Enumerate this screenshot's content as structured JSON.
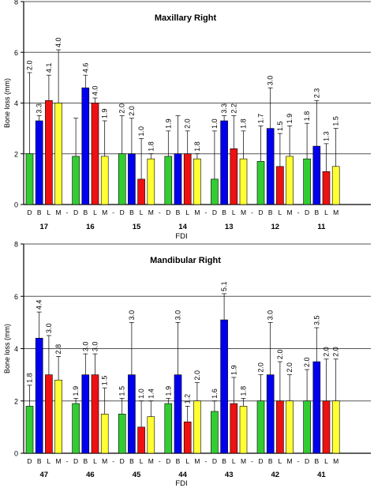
{
  "chart_data": [
    {
      "type": "bar",
      "title": "Maxillary Right",
      "ylabel": "Bone loss (mm)",
      "xlabel": "FDI",
      "ylim": [
        0,
        8
      ],
      "yticks": [
        "0",
        "2",
        "4",
        "6",
        "8"
      ],
      "grid": "horizontal at 2, 4, 6, 8",
      "separator_label": "-",
      "bar_letters": [
        "D",
        "B",
        "L",
        "M"
      ],
      "series_colors": [
        "#33cc33",
        "#0000ee",
        "#ee1111",
        "#ffff33"
      ],
      "categories": [
        "17",
        "16",
        "15",
        "14",
        "13",
        "12",
        "11"
      ],
      "series": [
        {
          "values": [
            2.0,
            1.9,
            2.0,
            1.9,
            1.0,
            1.7,
            1.8
          ],
          "errors": [
            3.2,
            1.5,
            1.5,
            1.0,
            1.9,
            1.4,
            1.4
          ],
          "labels": [
            "2.0",
            "",
            "2.0",
            "1.9",
            "1.0",
            "1.7",
            "1.8"
          ]
        },
        {
          "values": [
            3.3,
            4.6,
            2.0,
            2.0,
            3.3,
            3.0,
            2.3
          ],
          "errors": [
            0.2,
            0.5,
            1.4,
            1.5,
            0.2,
            1.6,
            1.8
          ],
          "labels": [
            "3.3",
            "4.6",
            "2.0",
            "",
            "3.3",
            "3.0",
            "2.3"
          ]
        },
        {
          "values": [
            4.1,
            4.0,
            1.0,
            2.0,
            2.2,
            1.5,
            1.3
          ],
          "errors": [
            1.0,
            0.2,
            1.6,
            0.9,
            1.3,
            1.3,
            1.1
          ],
          "labels": [
            "4.1",
            "4.0",
            "1.0",
            "2.0",
            "2.2",
            "1.5",
            "1.3"
          ]
        },
        {
          "values": [
            4.0,
            1.9,
            1.8,
            1.8,
            1.8,
            1.9,
            1.5
          ],
          "errors": [
            2.1,
            1.4,
            0.2,
            0.2,
            1.1,
            1.2,
            1.5
          ],
          "labels": [
            "4.0",
            "1.9",
            "1.8",
            "1.8",
            "1.8",
            "1.9",
            "1.5"
          ]
        }
      ]
    },
    {
      "type": "bar",
      "title": "Mandibular Right",
      "ylabel": "Bone loss (mm)",
      "xlabel": "FDI",
      "ylim": [
        0,
        8
      ],
      "yticks": [
        "0",
        "2",
        "4",
        "6",
        "8"
      ],
      "grid": "horizontal at 2, 4, 6, 8",
      "separator_label": "-",
      "bar_letters": [
        "D",
        "B",
        "L",
        "M"
      ],
      "series_colors": [
        "#33cc33",
        "#0000ee",
        "#ee1111",
        "#ffff33"
      ],
      "categories": [
        "47",
        "46",
        "45",
        "44",
        "43",
        "42",
        "41"
      ],
      "series": [
        {
          "values": [
            1.8,
            1.9,
            1.5,
            1.9,
            1.6,
            2.0,
            2.0
          ],
          "errors": [
            0.8,
            0.2,
            0.6,
            0.2,
            0.4,
            1.0,
            1.2
          ],
          "labels": [
            "1.8",
            "1.9",
            "1.5",
            "1.9",
            "1.6",
            "2.0",
            "2.0"
          ]
        },
        {
          "values": [
            4.4,
            3.0,
            3.0,
            3.0,
            5.1,
            3.0,
            3.5
          ],
          "errors": [
            1.0,
            0.8,
            2.0,
            2.0,
            1.0,
            2.0,
            1.3
          ],
          "labels": [
            "4.4",
            "3.0",
            "3.0",
            "3.0",
            "5.1",
            "3.0",
            "3.5"
          ]
        },
        {
          "values": [
            3.0,
            3.0,
            1.0,
            1.2,
            1.9,
            2.0,
            2.0
          ],
          "errors": [
            1.5,
            0.8,
            1.0,
            0.6,
            1.0,
            1.5,
            1.6
          ],
          "labels": [
            "3.0",
            "3.0",
            "1.0",
            "1.2",
            "1.9",
            "2.0",
            "2.0"
          ]
        },
        {
          "values": [
            2.8,
            1.5,
            1.4,
            2.0,
            1.8,
            2.0,
            2.0
          ],
          "errors": [
            0.9,
            1.0,
            0.6,
            0.7,
            0.3,
            1.0,
            1.6
          ],
          "labels": [
            "2.8",
            "1.5",
            "1.4",
            "2.0",
            "1.8",
            "2.0",
            "2.0"
          ]
        }
      ]
    }
  ]
}
